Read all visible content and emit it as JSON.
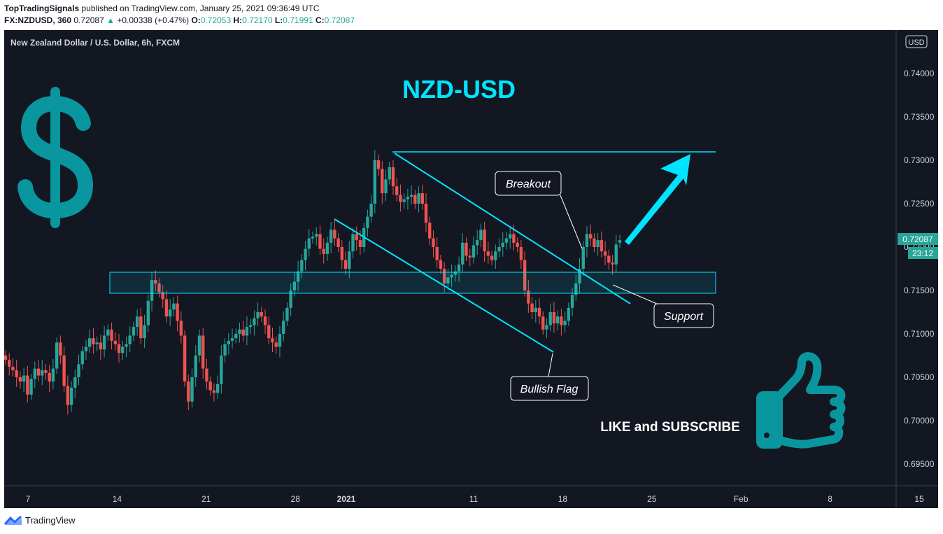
{
  "header": {
    "publisher": "TopTradingSignals",
    "published_text": "published on TradingView.com, January 25, 2021 09:36:49 UTC",
    "symbol": "FX:NZDUSD, 360",
    "last": "0.72087",
    "change_arrow": "▲",
    "change": "+0.00338 (+0.47%)",
    "ohlc": [
      {
        "k": "O:",
        "v": "0.72053"
      },
      {
        "k": "H:",
        "v": "0.72170"
      },
      {
        "k": "L:",
        "v": "0.71991"
      },
      {
        "k": "C:",
        "v": "0.72087"
      }
    ]
  },
  "chart_title": "New Zealand Dollar / U.S. Dollar, 6h, FXCM",
  "currency_badge": "USD",
  "big_title": "NZD-USD",
  "price_label": "0.72087",
  "countdown_label": "23:12",
  "annotations": {
    "breakout": "Breakout",
    "support": "Support",
    "bullish_flag": "Bullish Flag",
    "like": "LIKE and SUBSCRIBE"
  },
  "icons": [
    "dollar-icon",
    "thumbs-up-icon",
    "tradingview-logo-icon"
  ],
  "footer": {
    "brand": "TradingView"
  },
  "colors": {
    "background": "#131722",
    "up": "#26a69a",
    "down": "#ef5350",
    "annotation": "#00e5ff",
    "teal_icon": "#0a969f"
  },
  "chart_data": {
    "type": "candlestick",
    "title": "New Zealand Dollar / U.S. Dollar, 6h, FXCM",
    "ylim": [
      0.6925,
      0.745
    ],
    "y_ticks": [
      0.74,
      0.735,
      0.73,
      0.725,
      0.72,
      0.715,
      0.71,
      0.705,
      0.7,
      0.695
    ],
    "y_tick_labels": [
      "0.74000",
      "0.73500",
      "0.73000",
      "0.72500",
      "0.72000",
      "0.71500",
      "0.71000",
      "0.70500",
      "0.70000",
      "0.69500"
    ],
    "x_ticks": [
      {
        "label": "7",
        "date": "2020-12-07"
      },
      {
        "label": "14",
        "date": "2020-12-14"
      },
      {
        "label": "21",
        "date": "2020-12-21"
      },
      {
        "label": "28",
        "date": "2020-12-28"
      },
      {
        "label": "2021",
        "date": "2021-01-01"
      },
      {
        "label": "11",
        "date": "2021-01-11"
      },
      {
        "label": "18",
        "date": "2021-01-18"
      },
      {
        "label": "25",
        "date": "2021-01-25"
      },
      {
        "label": "Feb",
        "date": "2021-02-01"
      },
      {
        "label": "8",
        "date": "2021-02-08"
      },
      {
        "label": "15",
        "date": "2021-02-15"
      }
    ],
    "close_values": [
      0.707,
      0.7062,
      0.7058,
      0.705,
      0.7045,
      0.7052,
      0.703,
      0.7048,
      0.706,
      0.7052,
      0.7058,
      0.7055,
      0.7045,
      0.706,
      0.709,
      0.7075,
      0.704,
      0.7018,
      0.7038,
      0.705,
      0.7065,
      0.708,
      0.7085,
      0.7095,
      0.7088,
      0.709,
      0.7082,
      0.7098,
      0.7105,
      0.7092,
      0.7088,
      0.7078,
      0.7085,
      0.7088,
      0.7098,
      0.7108,
      0.712,
      0.7095,
      0.711,
      0.7138,
      0.7162,
      0.7158,
      0.7148,
      0.714,
      0.712,
      0.7128,
      0.7135,
      0.7115,
      0.7098,
      0.7045,
      0.7022,
      0.705,
      0.7075,
      0.7098,
      0.706,
      0.7045,
      0.7035,
      0.7032,
      0.7042,
      0.7075,
      0.7088,
      0.7092,
      0.7095,
      0.71,
      0.7105,
      0.7098,
      0.7108,
      0.711,
      0.7118,
      0.7125,
      0.712,
      0.711,
      0.7095,
      0.709,
      0.7085,
      0.71,
      0.7115,
      0.713,
      0.715,
      0.716,
      0.7172,
      0.7185,
      0.7198,
      0.721,
      0.7212,
      0.7215,
      0.7198,
      0.7192,
      0.7205,
      0.722,
      0.721,
      0.72,
      0.7185,
      0.7175,
      0.7195,
      0.7215,
      0.7208,
      0.72,
      0.7222,
      0.7235,
      0.725,
      0.73,
      0.729,
      0.7262,
      0.7278,
      0.7292,
      0.727,
      0.726,
      0.7252,
      0.7255,
      0.7258,
      0.726,
      0.725,
      0.7262,
      0.725,
      0.7228,
      0.721,
      0.72,
      0.7185,
      0.7175,
      0.7158,
      0.7165,
      0.7168,
      0.7172,
      0.718,
      0.7205,
      0.719,
      0.7188,
      0.7202,
      0.7208,
      0.722,
      0.7195,
      0.719,
      0.7185,
      0.7195,
      0.72,
      0.7205,
      0.721,
      0.7215,
      0.7205,
      0.72,
      0.7185,
      0.715,
      0.7135,
      0.7125,
      0.713,
      0.712,
      0.7105,
      0.711,
      0.7125,
      0.7112,
      0.712,
      0.711,
      0.7115,
      0.713,
      0.7145,
      0.7158,
      0.7175,
      0.72,
      0.7215,
      0.721,
      0.72,
      0.7208,
      0.7195,
      0.719,
      0.7182,
      0.718,
      0.7203,
      0.7208
    ],
    "open_values": [
      0.7075,
      0.707,
      0.7062,
      0.7058,
      0.705,
      0.7045,
      0.7052,
      0.703,
      0.7048,
      0.706,
      0.7052,
      0.7058,
      0.7055,
      0.7045,
      0.706,
      0.709,
      0.7075,
      0.704,
      0.7018,
      0.7038,
      0.705,
      0.7065,
      0.708,
      0.7085,
      0.7095,
      0.7088,
      0.709,
      0.7082,
      0.7098,
      0.7105,
      0.7092,
      0.7088,
      0.7078,
      0.7085,
      0.7088,
      0.7098,
      0.7108,
      0.712,
      0.7095,
      0.711,
      0.7138,
      0.7162,
      0.7158,
      0.7148,
      0.714,
      0.712,
      0.7128,
      0.7135,
      0.7115,
      0.7098,
      0.7045,
      0.7022,
      0.705,
      0.7075,
      0.7098,
      0.706,
      0.7045,
      0.7035,
      0.7032,
      0.7042,
      0.7075,
      0.7088,
      0.7092,
      0.7095,
      0.71,
      0.7105,
      0.7098,
      0.7108,
      0.711,
      0.7118,
      0.7125,
      0.712,
      0.711,
      0.7095,
      0.709,
      0.7085,
      0.71,
      0.7115,
      0.713,
      0.715,
      0.716,
      0.7172,
      0.7185,
      0.7198,
      0.721,
      0.7212,
      0.7215,
      0.7198,
      0.7192,
      0.7205,
      0.722,
      0.721,
      0.72,
      0.7185,
      0.7175,
      0.7195,
      0.7215,
      0.7208,
      0.72,
      0.7222,
      0.7235,
      0.725,
      0.73,
      0.729,
      0.7262,
      0.7278,
      0.7292,
      0.727,
      0.726,
      0.7252,
      0.7255,
      0.7258,
      0.726,
      0.725,
      0.7262,
      0.725,
      0.7228,
      0.721,
      0.72,
      0.7185,
      0.7175,
      0.7158,
      0.7165,
      0.7168,
      0.7172,
      0.718,
      0.7205,
      0.719,
      0.7188,
      0.7202,
      0.7208,
      0.722,
      0.7195,
      0.719,
      0.7185,
      0.7195,
      0.72,
      0.7205,
      0.721,
      0.7215,
      0.7205,
      0.72,
      0.7185,
      0.715,
      0.7135,
      0.7125,
      0.713,
      0.712,
      0.7105,
      0.711,
      0.7125,
      0.7112,
      0.712,
      0.711,
      0.7115,
      0.713,
      0.7145,
      0.7158,
      0.7175,
      0.72,
      0.7215,
      0.721,
      0.72,
      0.7208,
      0.7195,
      0.719,
      0.7182,
      0.718,
      0.7205
    ]
  }
}
